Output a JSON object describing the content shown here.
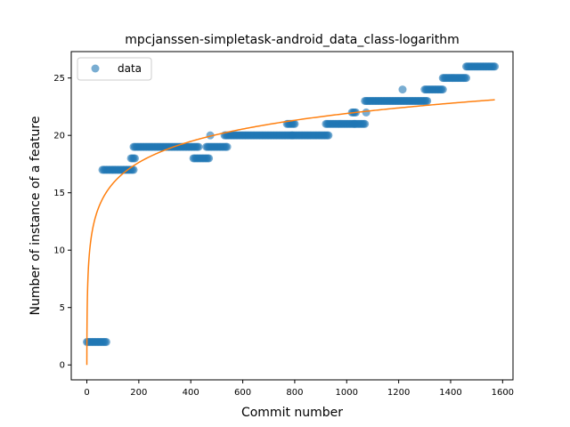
{
  "chart_data": {
    "type": "scatter",
    "title": "mpcjanssen-simpletask-android_data_class-logarithm",
    "xlabel": "Commit number",
    "ylabel": "Number of instance of a feature",
    "xlim": [
      -60,
      1640
    ],
    "ylim": [
      -1.3,
      27.3
    ],
    "xticks": [
      0,
      200,
      400,
      600,
      800,
      1000,
      1200,
      1400,
      1600
    ],
    "yticks": [
      0,
      5,
      10,
      15,
      20,
      25
    ],
    "grid": false,
    "legend": {
      "position": "top-left",
      "entries": [
        "data"
      ]
    },
    "series": [
      {
        "name": "data",
        "kind": "scatter",
        "color": "#1f77b4",
        "segments": [
          {
            "x_from": 0,
            "x_to": 75,
            "y": 2
          },
          {
            "x_from": 60,
            "x_to": 180,
            "y": 17
          },
          {
            "x_from": 170,
            "x_to": 185,
            "y": 18
          },
          {
            "x_from": 180,
            "x_to": 430,
            "y": 19
          },
          {
            "x_from": 410,
            "x_to": 470,
            "y": 18
          },
          {
            "x_from": 460,
            "x_to": 540,
            "y": 19
          },
          {
            "x_from": 530,
            "x_to": 790,
            "y": 20
          },
          {
            "x_from": 770,
            "x_to": 800,
            "y": 21
          },
          {
            "x_from": 790,
            "x_to": 930,
            "y": 20
          },
          {
            "x_from": 920,
            "x_to": 1030,
            "y": 21
          },
          {
            "x_from": 1020,
            "x_to": 1035,
            "y": 22
          },
          {
            "x_from": 1030,
            "x_to": 1070,
            "y": 21
          },
          {
            "x_from": 1070,
            "x_to": 1310,
            "y": 23
          },
          {
            "x_from": 1300,
            "x_to": 1370,
            "y": 24
          },
          {
            "x_from": 1370,
            "x_to": 1460,
            "y": 25
          },
          {
            "x_from": 1460,
            "x_to": 1570,
            "y": 26
          }
        ],
        "points": [
          {
            "x": 475,
            "y": 20
          },
          {
            "x": 1075,
            "y": 22
          },
          {
            "x": 1215,
            "y": 24
          }
        ]
      },
      {
        "name": "",
        "kind": "line",
        "color": "#ff7f0e",
        "model": "logarithmic",
        "points": [
          {
            "x": 0,
            "y": 0
          },
          {
            "x": 5,
            "y": 8.2
          },
          {
            "x": 20,
            "y": 11.6
          },
          {
            "x": 50,
            "y": 13.9
          },
          {
            "x": 100,
            "y": 15.6
          },
          {
            "x": 200,
            "y": 17.3
          },
          {
            "x": 400,
            "y": 19.1
          },
          {
            "x": 600,
            "y": 20.2
          },
          {
            "x": 800,
            "y": 21.1
          },
          {
            "x": 1000,
            "y": 21.7
          },
          {
            "x": 1200,
            "y": 22.8
          },
          {
            "x": 1400,
            "y": 23.2
          },
          {
            "x": 1570,
            "y": 23.6
          }
        ]
      }
    ]
  }
}
